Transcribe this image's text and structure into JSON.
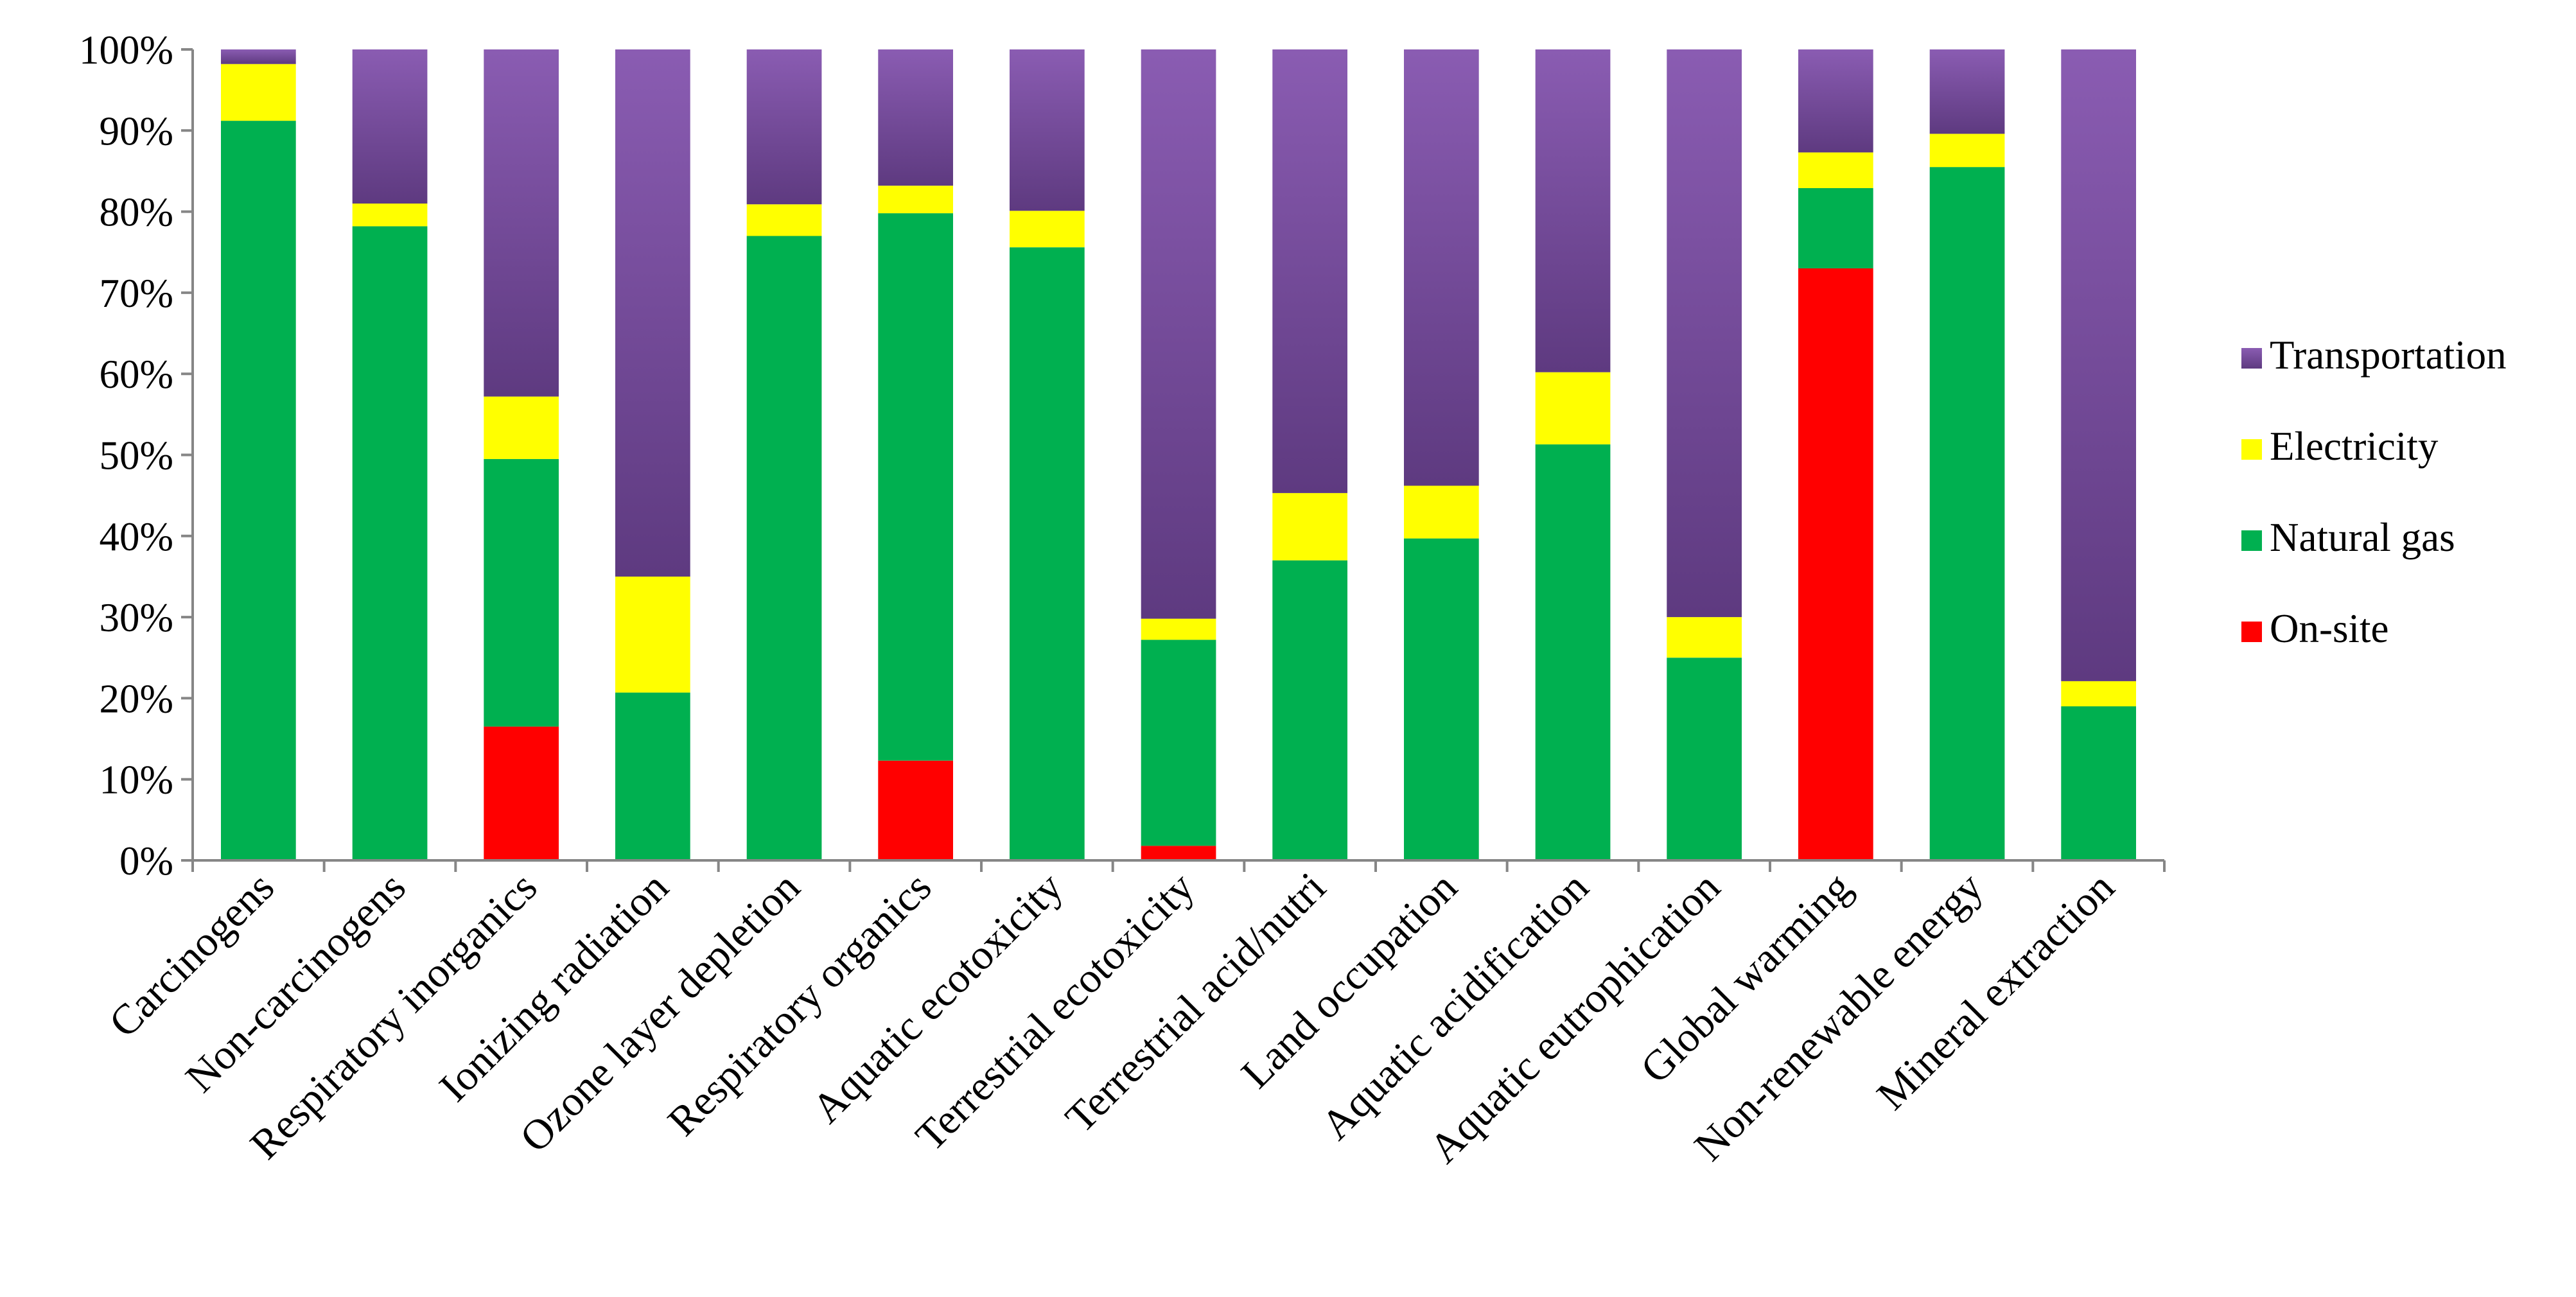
{
  "chart_data": {
    "type": "bar",
    "stacked": true,
    "percent_stacked": true,
    "title": "",
    "xlabel": "",
    "ylabel": "",
    "ylim": [
      0,
      100
    ],
    "yticks": [
      "0%",
      "10%",
      "20%",
      "30%",
      "40%",
      "50%",
      "60%",
      "70%",
      "80%",
      "90%",
      "100%"
    ],
    "grid": false,
    "legend_position": "right",
    "categories": [
      "Carcinogens",
      "Non-carcinogens",
      "Respiratory inorganics",
      "Ionizing radiation",
      "Ozone layer depletion",
      "Respiratory organics",
      "Aquatic ecotoxicity",
      "Terrestrial ecotoxicity",
      "Terrestrial acid/nutri",
      "Land occupation",
      "Aquatic acidification",
      "Aquatic eutrophication",
      "Global warming",
      "Non-renewable energy",
      "Mineral extraction"
    ],
    "series": [
      {
        "name": "On-site",
        "color": "#ff0000",
        "values": [
          0,
          0,
          16.5,
          0,
          0,
          12.3,
          0,
          1.8,
          0,
          0,
          0,
          0,
          73,
          0,
          0
        ]
      },
      {
        "name": "Natural gas",
        "color": "#00b050",
        "values": [
          91.2,
          78.2,
          33,
          20.7,
          77,
          67.5,
          75.6,
          25.4,
          37,
          39.7,
          51.3,
          25,
          9.9,
          85.5,
          19
        ]
      },
      {
        "name": "Electricity",
        "color": "#ffff00",
        "values": [
          7,
          2.8,
          7.7,
          14.3,
          3.9,
          3.4,
          4.5,
          2.6,
          8.3,
          6.5,
          8.9,
          5,
          4.4,
          4.1,
          3.1
        ]
      },
      {
        "name": "Transportation",
        "color": "#7b4f9e",
        "values": [
          1.8,
          19,
          42.8,
          65,
          19.1,
          16.8,
          19.9,
          70.2,
          54.7,
          53.8,
          39.8,
          70,
          12.7,
          10.4,
          77.9
        ]
      }
    ],
    "legend_order": [
      "Transportation",
      "Electricity",
      "Natural gas",
      "On-site"
    ]
  }
}
